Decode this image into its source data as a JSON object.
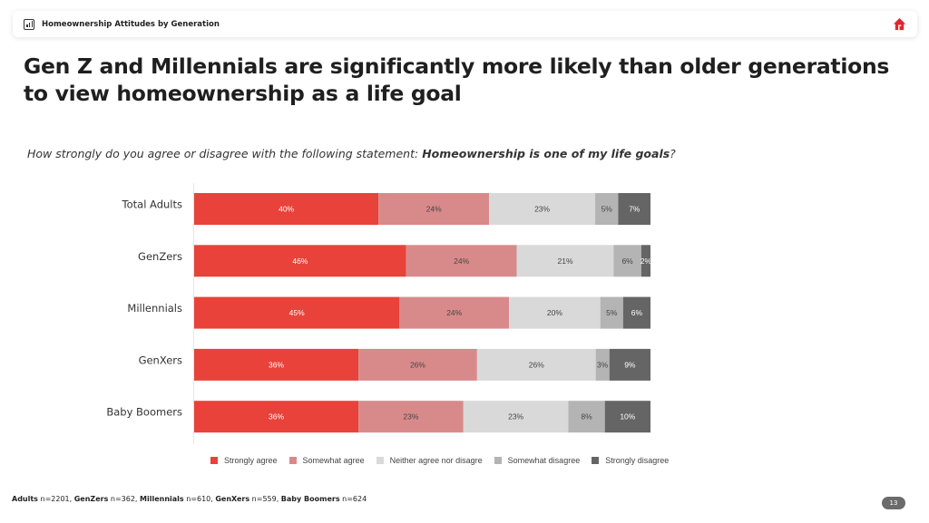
{
  "header": {
    "title": "Homeownership Attitudes by Generation",
    "left_icon": "bar-chart-icon",
    "right_icon": "home-logo-icon",
    "brand_color": "#e1262d"
  },
  "headline": "Gen Z and Millennials are significantly more likely than older generations to view homeownership as a life goal",
  "question": {
    "prefix": "How strongly do you agree or disagree with the following statement: ",
    "statement": "Homeownership is one of my life goals",
    "suffix": "?"
  },
  "chart_data": {
    "type": "bar",
    "orientation": "horizontal",
    "stacked": true,
    "title": "How strongly do you agree or disagree with the following statement: Homeownership is one of my life goals?",
    "xlabel": "",
    "ylabel": "",
    "grid": false,
    "legend_position": "bottom",
    "categories": [
      "Total Adults",
      "GenZers",
      "Millennials",
      "GenXers",
      "Baby Boomers"
    ],
    "series": [
      {
        "name": "Strongly agree",
        "color": "#e8423a",
        "label_color": "#ffffff",
        "values": [
          40,
          46,
          45,
          36,
          36
        ]
      },
      {
        "name": "Somewhat agree",
        "color": "#d88a8a",
        "label_color": "#444444",
        "values": [
          24,
          24,
          24,
          26,
          23
        ]
      },
      {
        "name": "Neither agree nor disagre",
        "color": "#d9d9d9",
        "label_color": "#444444",
        "values": [
          23,
          21,
          20,
          26,
          23
        ]
      },
      {
        "name": "Somewhat disagree",
        "color": "#b4b4b4",
        "label_color": "#444444",
        "values": [
          5,
          6,
          5,
          3,
          8
        ]
      },
      {
        "name": "Strongly disagree",
        "color": "#656565",
        "label_color": "#ffffff",
        "values": [
          7,
          2,
          6,
          9,
          10
        ]
      }
    ],
    "value_suffix": "%"
  },
  "footnote": [
    {
      "group": "Adults",
      "n": " n=2201, "
    },
    {
      "group": "GenZers",
      "n": " n=362, "
    },
    {
      "group": "Millennials",
      "n": " n=610, "
    },
    {
      "group": "GenXers",
      "n": " n=559, "
    },
    {
      "group": "Baby Boomers",
      "n": " n=624"
    }
  ],
  "page_number": "13"
}
